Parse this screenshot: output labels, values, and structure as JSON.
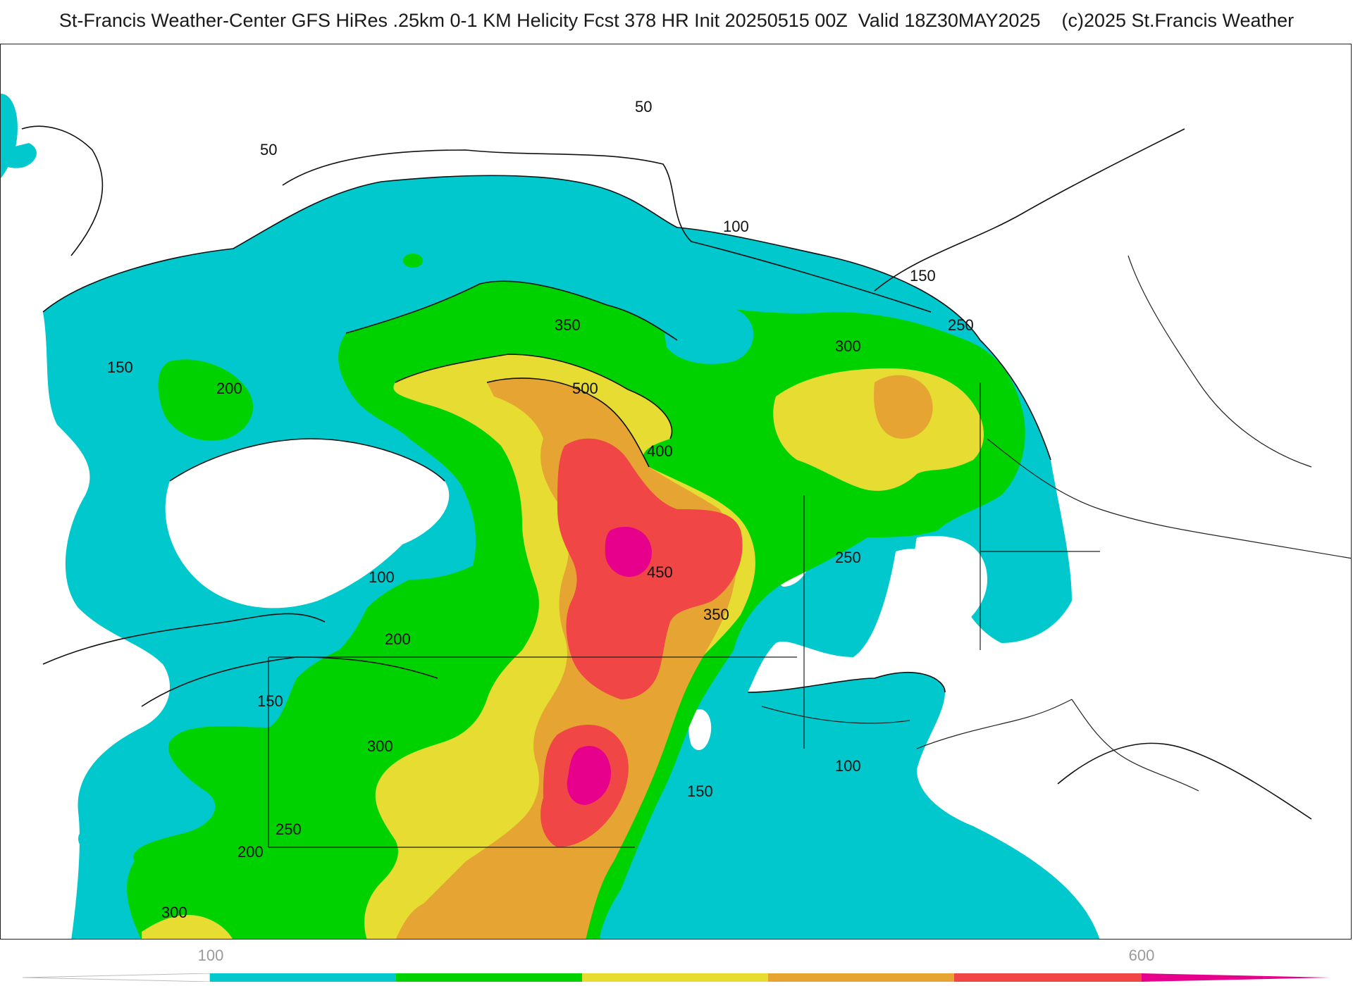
{
  "header": {
    "title": "St-Francis Weather-Center GFS HiRes .25km 0-1 KM Helicity Fcst 378 HR Init 20250515 00Z  Valid 18Z30MAY2025    (c)2025 St.Francis Weather"
  },
  "colors": {
    "band_100": "#00c8cc",
    "band_200": "#00d200",
    "band_300": "#e6dc32",
    "band_400": "#e6a532",
    "band_500": "#f04646",
    "band_550": "#e6008c",
    "land_outline": "#222222",
    "county_lines": "#c8c8c8"
  },
  "legend": {
    "ticks": [
      {
        "label": "100",
        "value": 100
      },
      {
        "label": "600",
        "value": 600
      }
    ],
    "min": 0,
    "max": 700
  },
  "contour_labels": [
    {
      "text": "50"
    },
    {
      "text": "50"
    },
    {
      "text": "100"
    },
    {
      "text": "150"
    },
    {
      "text": "250"
    },
    {
      "text": "300"
    },
    {
      "text": "350"
    },
    {
      "text": "500"
    },
    {
      "text": "400"
    },
    {
      "text": "450"
    },
    {
      "text": "350"
    },
    {
      "text": "250"
    },
    {
      "text": "150"
    },
    {
      "text": "200"
    },
    {
      "text": "100"
    },
    {
      "text": "200"
    },
    {
      "text": "150"
    },
    {
      "text": "300"
    },
    {
      "text": "250"
    },
    {
      "text": "200"
    },
    {
      "text": "300"
    },
    {
      "text": "150"
    },
    {
      "text": "100"
    }
  ]
}
